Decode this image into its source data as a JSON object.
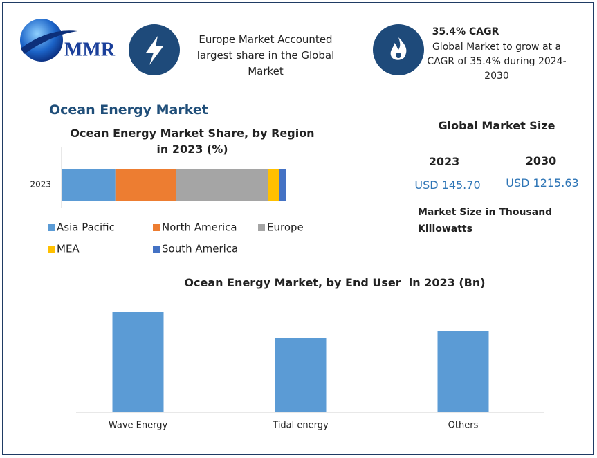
{
  "header": {
    "logo": "MMR",
    "highlight_1": "Europe Market Accounted largest share in the Global Market",
    "highlight_2_title": "35.4% CAGR",
    "highlight_2_text": "Global Market to grow at a CAGR of 35.4% during 2024-2030"
  },
  "page_title": "Ocean Energy Market",
  "market_size": {
    "title": "Global Market Size",
    "years": [
      "2023",
      "2030"
    ],
    "values": [
      "USD 145.70",
      "USD 1215.63"
    ],
    "note": "Market Size in Thousand Killowatts"
  },
  "chart_data": [
    {
      "type": "stacked_hbar",
      "title": "Ocean Energy Market Share, by Region in 2023 (%)",
      "categories": [
        "2023"
      ],
      "xlim": [
        0,
        100
      ],
      "series": [
        {
          "name": "Asia Pacific",
          "color": "#5b9bd5",
          "values": [
            24
          ]
        },
        {
          "name": "North America",
          "color": "#ed7d31",
          "values": [
            27
          ]
        },
        {
          "name": "Europe",
          "color": "#a5a5a5",
          "values": [
            41
          ]
        },
        {
          "name": "MEA",
          "color": "#ffc000",
          "values": [
            5
          ]
        },
        {
          "name": "South America",
          "color": "#4472c4",
          "values": [
            3
          ]
        }
      ]
    },
    {
      "type": "bar",
      "title": "Ocean Energy Market, by End User  in 2023 (Bn)",
      "categories": [
        "Wave Energy",
        "Tidal energy",
        "Others"
      ],
      "values": [
        145,
        107,
        118
      ],
      "color": "#5b9bd5",
      "ylim": [
        0,
        160
      ]
    }
  ]
}
